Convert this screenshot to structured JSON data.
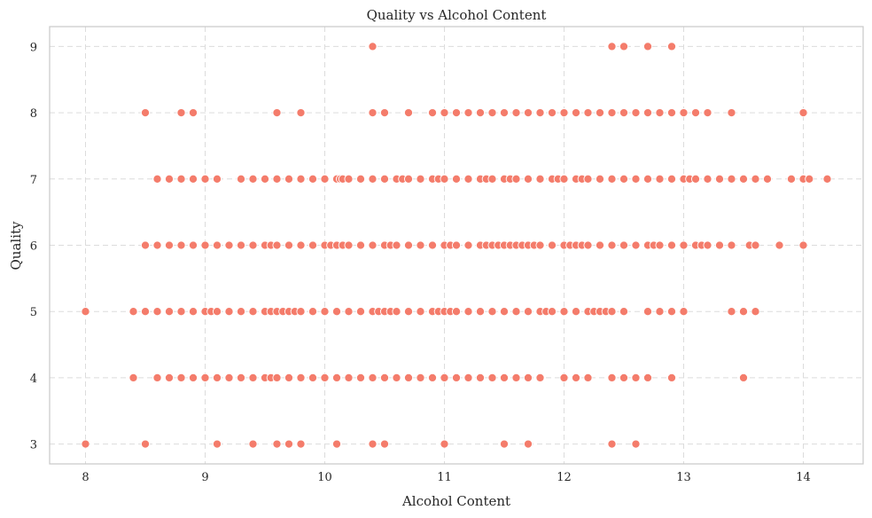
{
  "chart_data": {
    "type": "scatter",
    "title": "Quality vs Alcohol Content",
    "xlabel": "Alcohol Content",
    "ylabel": "Quality",
    "xlim": [
      7.7,
      14.5
    ],
    "ylim": [
      2.7,
      9.3
    ],
    "xticks": [
      8,
      9,
      10,
      11,
      12,
      13,
      14
    ],
    "yticks": [
      3,
      4,
      5,
      6,
      7,
      8,
      9
    ],
    "grid": true,
    "legend": "none",
    "marker_color": "#f47c6b",
    "points": [
      {
        "y": 9,
        "x": [
          10.4,
          12.4,
          12.5,
          12.7,
          12.9
        ]
      },
      {
        "y": 8,
        "x": [
          8.5,
          8.8,
          8.9,
          9.6,
          9.8,
          10.4,
          10.5,
          10.7,
          10.9,
          11.0,
          11.1,
          11.2,
          11.3,
          11.4,
          11.5,
          11.6,
          11.7,
          11.8,
          11.9,
          12.0,
          12.1,
          12.2,
          12.3,
          12.4,
          12.5,
          12.6,
          12.7,
          12.8,
          12.9,
          13.0,
          13.1,
          13.2,
          13.4,
          14.0
        ]
      },
      {
        "y": 7,
        "x": [
          8.6,
          8.7,
          8.8,
          8.9,
          9.0,
          9.1,
          9.3,
          9.4,
          9.5,
          9.6,
          9.7,
          9.8,
          9.9,
          10.0,
          10.1,
          10.13,
          10.15,
          10.2,
          10.3,
          10.4,
          10.5,
          10.6,
          10.65,
          10.7,
          10.8,
          10.9,
          10.95,
          11.0,
          11.1,
          11.2,
          11.3,
          11.35,
          11.4,
          11.5,
          11.55,
          11.6,
          11.7,
          11.8,
          11.9,
          11.95,
          12.0,
          12.1,
          12.15,
          12.2,
          12.3,
          12.4,
          12.5,
          12.6,
          12.7,
          12.8,
          12.9,
          13.0,
          13.05,
          13.1,
          13.2,
          13.3,
          13.4,
          13.5,
          13.6,
          13.7,
          13.9,
          14.0,
          14.05,
          14.2
        ]
      },
      {
        "y": 6,
        "x": [
          8.5,
          8.6,
          8.7,
          8.8,
          8.9,
          9.0,
          9.1,
          9.2,
          9.3,
          9.4,
          9.5,
          9.55,
          9.6,
          9.7,
          9.8,
          9.9,
          10.0,
          10.05,
          10.1,
          10.15,
          10.2,
          10.3,
          10.4,
          10.5,
          10.55,
          10.6,
          10.7,
          10.8,
          10.9,
          11.0,
          11.05,
          11.1,
          11.2,
          11.3,
          11.35,
          11.4,
          11.45,
          11.5,
          11.55,
          11.6,
          11.65,
          11.7,
          11.75,
          11.8,
          11.9,
          12.0,
          12.05,
          12.1,
          12.15,
          12.2,
          12.3,
          12.4,
          12.5,
          12.6,
          12.7,
          12.75,
          12.8,
          12.9,
          13.0,
          13.1,
          13.15,
          13.2,
          13.3,
          13.4,
          13.55,
          13.6,
          13.8,
          14.0
        ]
      },
      {
        "y": 5,
        "x": [
          8.0,
          8.4,
          8.5,
          8.6,
          8.7,
          8.8,
          8.9,
          9.0,
          9.05,
          9.1,
          9.2,
          9.3,
          9.4,
          9.5,
          9.55,
          9.6,
          9.65,
          9.7,
          9.75,
          9.8,
          9.9,
          10.0,
          10.1,
          10.2,
          10.3,
          10.4,
          10.45,
          10.5,
          10.55,
          10.6,
          10.7,
          10.8,
          10.9,
          10.95,
          11.0,
          11.05,
          11.1,
          11.2,
          11.3,
          11.4,
          11.5,
          11.6,
          11.7,
          11.8,
          11.85,
          11.9,
          12.0,
          12.1,
          12.2,
          12.25,
          12.3,
          12.35,
          12.4,
          12.5,
          12.7,
          12.8,
          12.9,
          13.0,
          13.4,
          13.5,
          13.6
        ]
      },
      {
        "y": 4,
        "x": [
          8.4,
          8.6,
          8.7,
          8.8,
          8.9,
          9.0,
          9.1,
          9.2,
          9.3,
          9.4,
          9.5,
          9.55,
          9.6,
          9.7,
          9.8,
          9.9,
          10.0,
          10.1,
          10.2,
          10.3,
          10.4,
          10.5,
          10.6,
          10.7,
          10.8,
          10.9,
          11.0,
          11.1,
          11.2,
          11.3,
          11.4,
          11.5,
          11.6,
          11.7,
          11.8,
          12.0,
          12.1,
          12.2,
          12.4,
          12.5,
          12.6,
          12.7,
          12.9,
          13.5
        ]
      },
      {
        "y": 3,
        "x": [
          8.0,
          8.5,
          9.1,
          9.4,
          9.6,
          9.7,
          9.8,
          10.1,
          10.4,
          10.5,
          11.0,
          11.5,
          11.7,
          12.4,
          12.6
        ]
      }
    ]
  }
}
